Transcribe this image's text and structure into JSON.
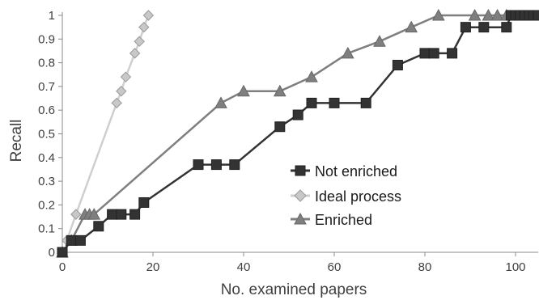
{
  "chart_data": {
    "type": "line",
    "title": "",
    "xlabel": "No. examined papers",
    "ylabel": "Recall",
    "xlim": [
      0,
      105
    ],
    "ylim": [
      0,
      1
    ],
    "x_ticks": [
      0,
      20,
      40,
      60,
      80,
      100
    ],
    "y_ticks": [
      0,
      0.1,
      0.2,
      0.3,
      0.4,
      0.5,
      0.6,
      0.7,
      0.8,
      0.9,
      1
    ],
    "x_tick_labels": [
      "0",
      "20",
      "40",
      "60",
      "80",
      "100"
    ],
    "y_tick_labels": [
      "0",
      "0.1",
      "0.2",
      "0.3",
      "0.4",
      "0.5",
      "0.6",
      "0.7",
      "0.8",
      "0.9",
      "1"
    ],
    "grid": false,
    "legend_position": "right-center",
    "series": [
      {
        "name": "Not enriched",
        "color": "#333333",
        "marker": "square",
        "points": [
          [
            0,
            0
          ],
          [
            2,
            0.05
          ],
          [
            4,
            0.05
          ],
          [
            8,
            0.11
          ],
          [
            11,
            0.16
          ],
          [
            13,
            0.16
          ],
          [
            16,
            0.16
          ],
          [
            18,
            0.21
          ],
          [
            30,
            0.37
          ],
          [
            34,
            0.37
          ],
          [
            38,
            0.37
          ],
          [
            48,
            0.53
          ],
          [
            52,
            0.58
          ],
          [
            55,
            0.63
          ],
          [
            60,
            0.63
          ],
          [
            67,
            0.63
          ],
          [
            74,
            0.79
          ],
          [
            80,
            0.84
          ],
          [
            82,
            0.84
          ],
          [
            86,
            0.84
          ],
          [
            89,
            0.95
          ],
          [
            93,
            0.95
          ],
          [
            98,
            0.95
          ],
          [
            99,
            1
          ],
          [
            100,
            1
          ],
          [
            101,
            1
          ],
          [
            102,
            1
          ],
          [
            103,
            1
          ],
          [
            104,
            1
          ],
          [
            105,
            1
          ]
        ]
      },
      {
        "name": "Ideal process",
        "color": "#cfcfcf",
        "marker": "diamond",
        "points": [
          [
            1,
            0.05
          ],
          [
            3,
            0.16
          ],
          [
            12,
            0.63
          ],
          [
            13,
            0.68
          ],
          [
            14,
            0.74
          ],
          [
            16,
            0.84
          ],
          [
            17,
            0.89
          ],
          [
            18,
            0.95
          ],
          [
            19,
            1
          ]
        ]
      },
      {
        "name": "Enriched",
        "color": "#7f7f7f",
        "marker": "triangle",
        "points": [
          [
            0,
            0
          ],
          [
            2,
            0.05
          ],
          [
            5,
            0.16
          ],
          [
            6,
            0.16
          ],
          [
            7,
            0.16
          ],
          [
            35,
            0.63
          ],
          [
            40,
            0.68
          ],
          [
            48,
            0.68
          ],
          [
            55,
            0.74
          ],
          [
            63,
            0.84
          ],
          [
            70,
            0.89
          ],
          [
            77,
            0.95
          ],
          [
            83,
            1
          ],
          [
            91,
            1
          ],
          [
            94,
            1
          ],
          [
            96,
            1
          ],
          [
            98,
            1
          ]
        ]
      }
    ]
  }
}
